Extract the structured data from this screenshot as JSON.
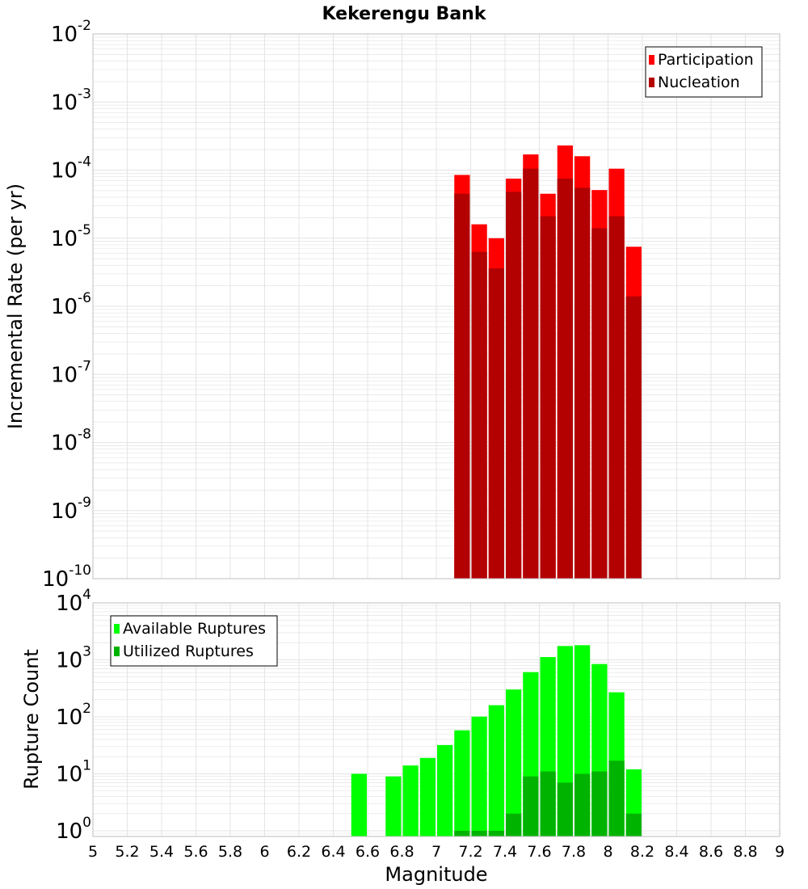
{
  "title": "Kekerengu Bank",
  "colors": {
    "participation": "#ff0000",
    "nucleation": "#b30000",
    "available": "#00ff00",
    "utilized": "#00b300",
    "grid": "#e4e4e4",
    "frame": "#bfbfbf"
  },
  "chart_data": [
    {
      "type": "bar",
      "panel": "top",
      "title": "Kekerengu Bank",
      "ylabel": "Incremental Rate (per yr)",
      "xlabel": "",
      "yscale": "log",
      "ylim_exp": [
        -10,
        -2
      ],
      "y_ticks": [
        "-10",
        "-9",
        "-8",
        "-7",
        "-6",
        "-5",
        "-4",
        "-3",
        "-2"
      ],
      "xlim": [
        5,
        9
      ],
      "bin_width": 0.1,
      "x": [
        7.15,
        7.25,
        7.35,
        7.45,
        7.55,
        7.65,
        7.75,
        7.85,
        7.95,
        8.05,
        8.15
      ],
      "grid": true,
      "legend_position": "top-right",
      "series": [
        {
          "name": "Participation",
          "color": "#ff0000",
          "values": [
            8.5e-05,
            1.6e-05,
            1e-05,
            7.5e-05,
            0.00017,
            4.5e-05,
            0.00023,
            0.00016,
            5.1e-05,
            0.000105,
            7.5e-06
          ]
        },
        {
          "name": "Nucleation",
          "color": "#b30000",
          "values": [
            4.5e-05,
            6.3e-06,
            3.6e-06,
            4.8e-05,
            0.000105,
            2.1e-05,
            7.5e-05,
            5.5e-05,
            1.4e-05,
            2.1e-05,
            1.4e-06
          ]
        }
      ]
    },
    {
      "type": "bar",
      "panel": "bottom",
      "ylabel": "Rupture Count",
      "xlabel": "Magnitude",
      "yscale": "log",
      "ylim_exp": [
        -0.1,
        4
      ],
      "y_ticks": [
        "0",
        "1",
        "2",
        "3",
        "4"
      ],
      "xlim": [
        5,
        9
      ],
      "x_ticks": [
        "5",
        "5.2",
        "5.4",
        "5.6",
        "5.8",
        "6",
        "6.2",
        "6.4",
        "6.6",
        "6.8",
        "7",
        "7.2",
        "7.4",
        "7.6",
        "7.8",
        "8",
        "8.2",
        "8.4",
        "8.6",
        "8.8",
        "9"
      ],
      "bin_width": 0.1,
      "x": [
        6.55,
        6.75,
        6.85,
        6.95,
        7.05,
        7.15,
        7.25,
        7.35,
        7.45,
        7.55,
        7.65,
        7.75,
        7.85,
        7.95,
        8.05,
        8.15
      ],
      "grid": true,
      "legend_position": "top-left",
      "series": [
        {
          "name": "Available Ruptures",
          "color": "#00ff00",
          "values": [
            10,
            9,
            14,
            19,
            32,
            58,
            101,
            160,
            302,
            610,
            1120,
            1750,
            1810,
            845,
            270,
            12
          ]
        },
        {
          "name": "Utilized Ruptures",
          "color": "#00b300",
          "values": [
            0,
            0,
            0,
            0,
            0,
            1,
            1,
            1,
            2,
            9,
            11,
            7,
            10,
            11,
            17,
            2
          ]
        }
      ]
    }
  ]
}
